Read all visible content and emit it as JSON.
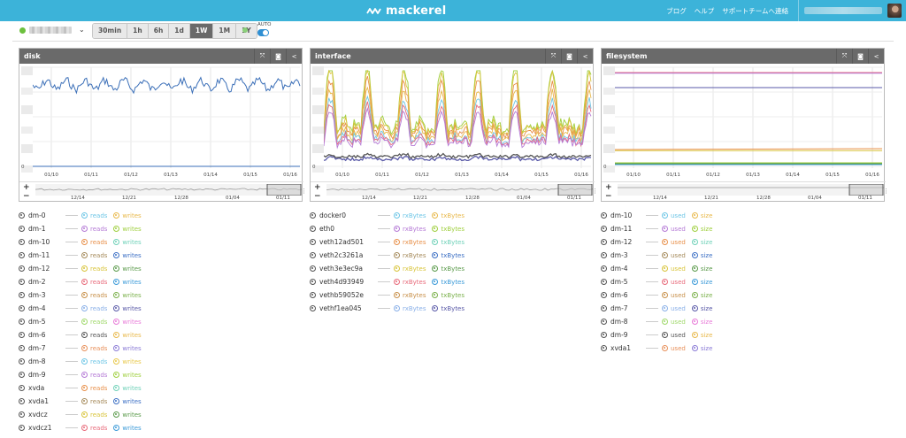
{
  "app": {
    "logo_text": "mackerel",
    "nav": [
      "ブログ",
      "ヘルプ",
      "サポートチームへ連絡"
    ]
  },
  "toolbar": {
    "ranges": [
      "30min",
      "1h",
      "6h",
      "1d",
      "1W",
      "1M",
      "1Y"
    ],
    "active_range": "1W",
    "auto_label": "AUTO",
    "auto_on": true
  },
  "panels": [
    {
      "title": "disk",
      "x_labels": [
        "01/10",
        "01/11",
        "01/12",
        "01/13",
        "01/14",
        "01/15",
        "01/16"
      ],
      "y_zero": "0",
      "nav_labels": [
        "12/14",
        "12/21",
        "12/28",
        "01/04",
        "01/11"
      ]
    },
    {
      "title": "interface",
      "x_labels": [
        "01/10",
        "01/11",
        "01/12",
        "01/13",
        "01/14",
        "01/15",
        "01/16"
      ],
      "y_zero": "0",
      "nav_labels": [
        "12/14",
        "12/21",
        "12/28",
        "01/04",
        "01/11"
      ]
    },
    {
      "title": "filesystem",
      "x_labels": [
        "01/10",
        "01/11",
        "01/12",
        "01/13",
        "01/14",
        "01/15",
        "01/16"
      ],
      "y_zero": "0",
      "nav_labels": [
        "12/14",
        "12/21",
        "12/28",
        "01/04",
        "01/11"
      ]
    }
  ],
  "legends": {
    "disk": {
      "series_labels": [
        "reads",
        "writes"
      ],
      "rows": [
        {
          "name": "dm-0",
          "colors": [
            "#6ec6e6",
            "#e8b84a"
          ]
        },
        {
          "name": "dm-1",
          "colors": [
            "#b57ad6",
            "#9fcf3e"
          ]
        },
        {
          "name": "dm-10",
          "colors": [
            "#e8904a",
            "#6fd1b8"
          ]
        },
        {
          "name": "dm-11",
          "colors": [
            "#a58a5a",
            "#3b6fc4"
          ]
        },
        {
          "name": "dm-12",
          "colors": [
            "#d8c43a",
            "#5a9a4a"
          ]
        },
        {
          "name": "dm-2",
          "colors": [
            "#e86a7a",
            "#3a9ad8"
          ]
        },
        {
          "name": "dm-3",
          "colors": [
            "#c8904a",
            "#7ab04a"
          ]
        },
        {
          "name": "dm-4",
          "colors": [
            "#8ab0e8",
            "#5a5aa8"
          ]
        },
        {
          "name": "dm-5",
          "colors": [
            "#9fd86a",
            "#e87ad8"
          ]
        },
        {
          "name": "dm-6",
          "colors": [
            "#555555",
            "#e8b84a"
          ]
        },
        {
          "name": "dm-7",
          "colors": [
            "#e8905a",
            "#8a7ad6"
          ]
        },
        {
          "name": "dm-8",
          "colors": [
            "#6ec6e6",
            "#e8c84a"
          ]
        },
        {
          "name": "dm-9",
          "colors": [
            "#b57ad6",
            "#9fcf3e"
          ]
        },
        {
          "name": "xvda",
          "colors": [
            "#e8904a",
            "#6fd1b8"
          ]
        },
        {
          "name": "xvda1",
          "colors": [
            "#a58a5a",
            "#3b6fc4"
          ]
        },
        {
          "name": "xvdcz",
          "colors": [
            "#d8c43a",
            "#5a9a4a"
          ]
        },
        {
          "name": "xvdcz1",
          "colors": [
            "#e86a7a",
            "#3a9ad8"
          ]
        }
      ]
    },
    "interface": {
      "series_labels": [
        "rxBytes",
        "txBytes"
      ],
      "rows": [
        {
          "name": "docker0",
          "colors": [
            "#6ec6e6",
            "#e8b84a"
          ]
        },
        {
          "name": "eth0",
          "colors": [
            "#b57ad6",
            "#9fcf3e"
          ]
        },
        {
          "name": "veth12ad501",
          "colors": [
            "#e8904a",
            "#6fd1b8"
          ]
        },
        {
          "name": "veth2c3261a",
          "colors": [
            "#a58a5a",
            "#3b6fc4"
          ]
        },
        {
          "name": "veth3e3ec9a",
          "colors": [
            "#d8c43a",
            "#5a9a4a"
          ]
        },
        {
          "name": "veth4d93949",
          "colors": [
            "#e86a7a",
            "#3a9ad8"
          ]
        },
        {
          "name": "vethb59052e",
          "colors": [
            "#c8904a",
            "#7ab04a"
          ]
        },
        {
          "name": "vethf1ea045",
          "colors": [
            "#8ab0e8",
            "#5a5aa8"
          ]
        }
      ]
    },
    "filesystem": {
      "series_labels": [
        "used",
        "size"
      ],
      "rows": [
        {
          "name": "dm-10",
          "colors": [
            "#6ec6e6",
            "#e8b84a"
          ]
        },
        {
          "name": "dm-11",
          "colors": [
            "#b57ad6",
            "#9fcf3e"
          ]
        },
        {
          "name": "dm-12",
          "colors": [
            "#e8904a",
            "#6fd1b8"
          ]
        },
        {
          "name": "dm-3",
          "colors": [
            "#a58a5a",
            "#3b6fc4"
          ]
        },
        {
          "name": "dm-4",
          "colors": [
            "#d8c43a",
            "#5a9a4a"
          ]
        },
        {
          "name": "dm-5",
          "colors": [
            "#e86a7a",
            "#3a9ad8"
          ]
        },
        {
          "name": "dm-6",
          "colors": [
            "#c8904a",
            "#7ab04a"
          ]
        },
        {
          "name": "dm-7",
          "colors": [
            "#8ab0e8",
            "#5a5aa8"
          ]
        },
        {
          "name": "dm-8",
          "colors": [
            "#9fd86a",
            "#e87ad8"
          ]
        },
        {
          "name": "dm-9",
          "colors": [
            "#555555",
            "#e8b84a"
          ]
        },
        {
          "name": "xvda1",
          "colors": [
            "#e8905a",
            "#8a7ad6"
          ]
        }
      ]
    }
  }
}
